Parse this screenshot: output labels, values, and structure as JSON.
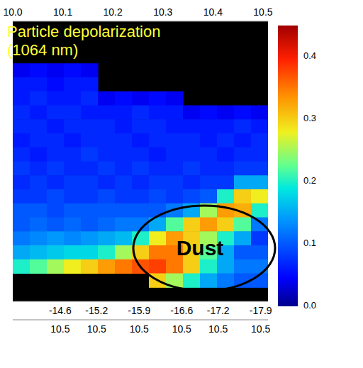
{
  "chart_data": {
    "type": "heatmap",
    "title": "Particle depolarization (1064 nm)",
    "annotations": [
      "Dust"
    ],
    "xlim": [
      10.0,
      10.51
    ],
    "xticks": [
      {
        "value": 10,
        "label": "10.0"
      },
      10.1,
      10.2,
      10.3,
      10.4,
      10.5
    ],
    "x2lim": [
      -13.82,
      -18.02
    ],
    "x2ticks": [
      -14.6,
      -15.2,
      -15.9,
      -16.6,
      -17.2,
      -17.9
    ],
    "x3ticks": [
      {
        "value": -14.6,
        "label": "10.5"
      },
      {
        "value": -15.2,
        "label": "10.5"
      },
      {
        "value": -15.9,
        "label": "10.5"
      },
      {
        "value": -16.6,
        "label": "10.5"
      },
      {
        "value": -17.2,
        "label": "10.5"
      },
      {
        "value": -17.9,
        "label": "10.5"
      }
    ],
    "tick_labels": "x",
    "cells": [
      [
        null,
        null,
        null,
        null,
        null,
        null,
        null,
        null,
        null,
        null,
        null,
        null,
        null,
        null,
        null
      ],
      [
        null,
        null,
        null,
        null,
        null,
        null,
        null,
        null,
        null,
        null,
        null,
        null,
        null,
        null,
        null
      ],
      [
        null,
        null,
        null,
        null,
        null,
        null,
        null,
        null,
        null,
        null,
        null,
        null,
        null,
        null,
        null
      ],
      [
        0.04,
        0.05,
        0.04,
        0.05,
        0.04,
        null,
        null,
        null,
        null,
        null,
        null,
        null,
        null,
        null,
        null
      ],
      [
        0.06,
        0.06,
        0.05,
        0.06,
        0.06,
        null,
        null,
        null,
        null,
        null,
        null,
        null,
        null,
        null,
        null
      ],
      [
        0.06,
        0.07,
        0.06,
        0.06,
        0.07,
        0.04,
        0.05,
        0.04,
        0.05,
        0.04,
        null,
        null,
        null,
        null,
        null
      ],
      [
        0.07,
        0.06,
        0.07,
        0.07,
        0.06,
        0.06,
        0.06,
        0.07,
        0.06,
        0.06,
        0.04,
        0.05,
        0.04,
        0.05,
        0.04
      ],
      [
        0.07,
        0.07,
        0.06,
        0.07,
        0.07,
        0.07,
        0.06,
        0.07,
        0.07,
        0.06,
        0.06,
        0.06,
        0.06,
        0.07,
        0.06
      ],
      [
        0.06,
        0.07,
        0.07,
        0.06,
        0.07,
        0.07,
        0.07,
        0.06,
        0.07,
        0.07,
        0.07,
        0.06,
        0.07,
        0.06,
        0.07
      ],
      [
        0.07,
        0.06,
        0.07,
        0.07,
        0.08,
        0.07,
        0.07,
        0.07,
        0.06,
        0.07,
        0.07,
        0.07,
        0.06,
        0.07,
        0.07
      ],
      [
        0.08,
        0.07,
        0.08,
        0.07,
        0.07,
        0.08,
        0.07,
        0.08,
        0.07,
        0.07,
        0.08,
        0.07,
        0.07,
        0.08,
        0.08
      ],
      [
        0.07,
        0.08,
        0.07,
        0.08,
        0.08,
        0.07,
        0.08,
        0.07,
        0.08,
        0.08,
        0.07,
        0.08,
        0.08,
        0.15,
        0.15
      ],
      [
        0.08,
        0.08,
        0.09,
        0.08,
        0.08,
        0.09,
        0.08,
        0.08,
        0.09,
        0.08,
        0.09,
        0.1,
        0.2,
        0.3,
        0.28
      ],
      [
        0.1,
        0.1,
        0.09,
        0.1,
        0.1,
        0.1,
        0.1,
        0.1,
        0.1,
        0.12,
        0.15,
        0.25,
        0.33,
        0.32,
        0.2
      ],
      [
        0.1,
        0.11,
        0.1,
        0.11,
        0.1,
        0.11,
        0.12,
        0.12,
        0.15,
        0.22,
        0.3,
        0.33,
        0.3,
        0.22,
        0.12
      ],
      [
        0.12,
        0.13,
        0.14,
        0.13,
        0.14,
        0.15,
        0.16,
        0.2,
        0.28,
        0.33,
        0.3,
        0.25,
        0.2,
        0.15,
        0.08
      ],
      [
        0.15,
        0.16,
        0.17,
        0.18,
        0.18,
        0.2,
        0.25,
        0.3,
        0.35,
        0.35,
        0.3,
        0.22,
        0.15,
        0.1,
        0.1
      ],
      [
        0.2,
        0.22,
        0.25,
        0.28,
        0.3,
        0.33,
        0.35,
        0.37,
        0.38,
        0.35,
        0.3,
        0.2,
        0.15,
        0.12,
        0.12
      ],
      [
        null,
        null,
        null,
        null,
        null,
        null,
        null,
        null,
        0.3,
        0.25,
        0.2,
        0.15,
        0.12,
        0.1,
        0.1
      ],
      [
        null,
        null,
        null,
        null,
        null,
        null,
        null,
        null,
        null,
        null,
        null,
        null,
        null,
        null,
        null
      ]
    ],
    "colorbar": {
      "range": [
        0,
        0.45
      ],
      "ticks": [
        {
          "value": 0,
          "label": "0.0"
        },
        0.1,
        0.2,
        0.3,
        0.4
      ]
    }
  }
}
